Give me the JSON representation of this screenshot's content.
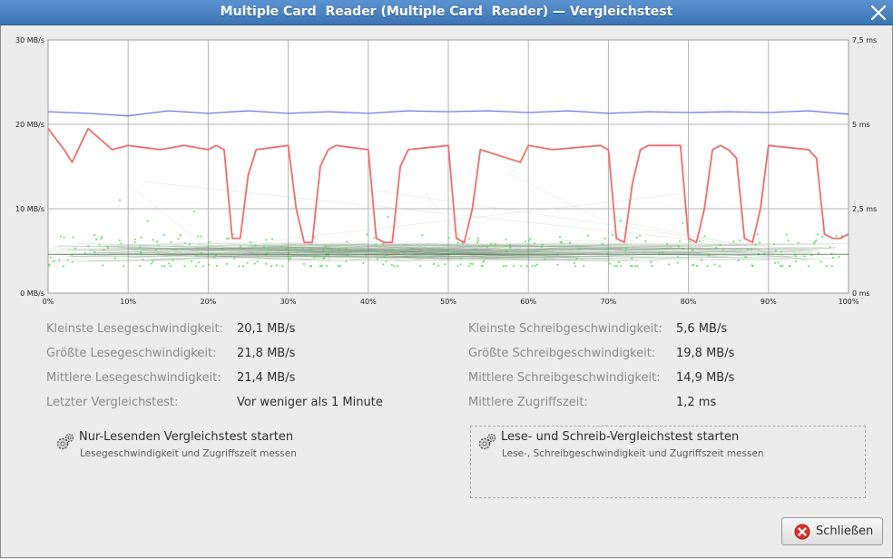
{
  "window": {
    "title": "Multiple Card  Reader (Multiple Card  Reader) — Vergleichstest"
  },
  "chart_data": {
    "type": "line",
    "title": "",
    "xlabel": "",
    "ylabel": "",
    "x_ticks": [
      "0%",
      "10%",
      "20%",
      "30%",
      "40%",
      "50%",
      "60%",
      "70%",
      "80%",
      "90%",
      "100%"
    ],
    "y_left_ticks": [
      "0 MB/s",
      "10 MB/s",
      "20 MB/s",
      "30 MB/s"
    ],
    "y_right_ticks": [
      "0 ms",
      "2,5 ms",
      "5 ms",
      "7,5 ms"
    ],
    "y_left_range": [
      0,
      30
    ],
    "y_right_range": [
      0,
      7.5
    ],
    "grid": true,
    "series": [
      {
        "name": "",
        "color": "#7777ee",
        "axis": "left",
        "x": [
          0,
          5,
          10,
          15,
          20,
          25,
          30,
          35,
          40,
          45,
          50,
          55,
          60,
          65,
          70,
          75,
          80,
          85,
          90,
          95,
          100
        ],
        "values": [
          21.5,
          21.3,
          21.0,
          21.6,
          21.3,
          21.6,
          21.3,
          21.5,
          21.3,
          21.6,
          21.5,
          21.6,
          21.4,
          21.6,
          21.3,
          21.5,
          21.4,
          21.5,
          21.4,
          21.6,
          21.2
        ]
      },
      {
        "name": "",
        "color": "#ee6e6e",
        "axis": "left",
        "x": [
          0,
          2,
          3,
          5,
          8,
          10,
          14,
          17,
          20,
          21,
          22,
          23,
          24,
          25,
          26,
          30,
          31,
          32,
          33,
          34,
          35,
          36,
          40,
          41,
          42,
          43,
          44,
          45,
          50,
          51,
          52,
          53,
          54,
          59,
          60,
          63,
          69,
          70,
          71,
          72,
          73,
          74,
          75,
          79,
          80,
          81,
          82,
          83,
          84,
          85,
          86,
          87,
          88,
          89,
          90,
          95,
          96,
          97,
          98,
          99,
          100
        ],
        "values": [
          19.5,
          17,
          15.5,
          19.5,
          17,
          17.5,
          17,
          17.5,
          17,
          17.5,
          17,
          6.5,
          6.5,
          14,
          17,
          17.5,
          10,
          6,
          6,
          15,
          17,
          17.5,
          17,
          6.5,
          6,
          6,
          15,
          17,
          17.5,
          6.5,
          6,
          10,
          17,
          15.5,
          17.5,
          17,
          17.5,
          17,
          6.5,
          6,
          13,
          17,
          17.5,
          17.5,
          6.5,
          6,
          10,
          17,
          17.5,
          17,
          16,
          6.5,
          6,
          10,
          17.5,
          17,
          16,
          7,
          6.5,
          6.5,
          7
        ]
      },
      {
        "name": "",
        "color": "#44dd44",
        "axis": "right",
        "x": [
          0,
          5,
          10,
          15,
          20,
          25,
          30,
          35,
          40,
          45,
          50,
          55,
          60,
          65,
          70,
          75,
          80,
          85,
          90,
          95,
          100
        ],
        "values": [
          1.2,
          1.1,
          1.3,
          1.2,
          1.1,
          1.2,
          1.3,
          1.2,
          1.1,
          1.2,
          1.2,
          1.3,
          1.1,
          1.2,
          1.2,
          1.1,
          1.3,
          1.2,
          1.2,
          1.1,
          1.2
        ]
      }
    ]
  },
  "stats_left": [
    {
      "label": "Kleinste Lesegeschwindigkeit:",
      "value": "20,1 MB/s"
    },
    {
      "label": "Größte Lesegeschwindigkeit:",
      "value": "21,8 MB/s"
    },
    {
      "label": "Mittlere Lesegeschwindigkeit:",
      "value": "21,4 MB/s"
    },
    {
      "label": "Letzter Vergleichstest:",
      "value": "Vor weniger als 1 Minute"
    }
  ],
  "stats_right": [
    {
      "label": "Kleinste Schreibgeschwindigkeit:",
      "value": "5,6 MB/s"
    },
    {
      "label": "Größte Schreibgeschwindigkeit:",
      "value": "19,8 MB/s"
    },
    {
      "label": "Mittlere Schreibgeschwindigkeit:",
      "value": "14,9 MB/s"
    },
    {
      "label": "Mittlere Zugriffszeit:",
      "value": "1,2 ms"
    }
  ],
  "actions": {
    "read_only": {
      "title": "Nur-Lesenden Vergleichstest starten",
      "subtitle": "Lesegeschwindigkeit und Zugriffszeit messen",
      "icon": "gears-icon"
    },
    "read_write": {
      "title": "Lese- und Schreib-Vergleichstest starten",
      "subtitle": "Lese-, Schreibgeschwindigkeit und Zugriffszeit messen",
      "icon": "gears-icon"
    }
  },
  "buttons": {
    "close_label": "Schließen"
  }
}
